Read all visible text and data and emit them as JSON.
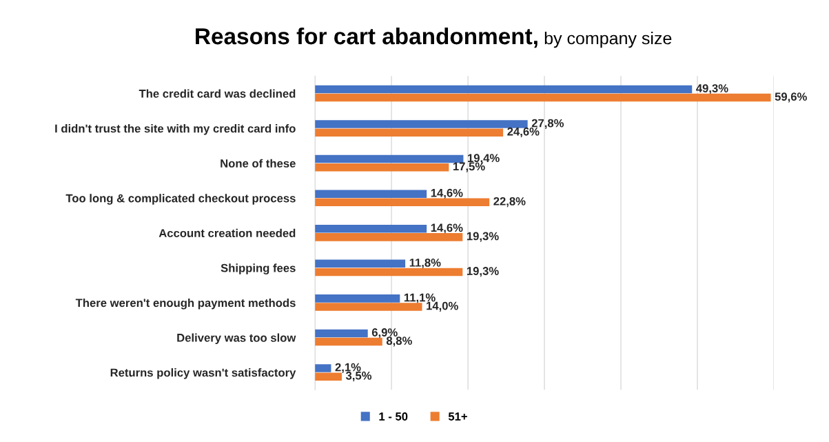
{
  "chart_data": {
    "type": "bar",
    "orientation": "horizontal",
    "title": "Reasons for cart abandonment,",
    "subtitle": "by company size",
    "categories": [
      "The credit card was declined",
      "I didn't trust the site with my credit card info",
      "None of these",
      "Too long & complicated checkout process",
      "Account creation needed",
      "Shipping fees",
      "There weren't enough payment methods",
      "Delivery was too slow",
      "Returns policy wasn't satisfactory"
    ],
    "series": [
      {
        "name": "1 - 50",
        "color": "#4472c4",
        "values": [
          49.3,
          27.8,
          19.4,
          14.6,
          14.6,
          11.8,
          11.1,
          6.9,
          2.1
        ],
        "value_labels": [
          "49,3%",
          "27,8%",
          "19,4%",
          "14,6%",
          "14,6%",
          "11,8%",
          "11,1%",
          "6,9%",
          "2,1%"
        ]
      },
      {
        "name": "51+",
        "color": "#ed7d31",
        "values": [
          59.6,
          24.6,
          17.5,
          22.8,
          19.3,
          19.3,
          14.0,
          8.8,
          3.5
        ],
        "value_labels": [
          "59,6%",
          "24,6%",
          "17,5%",
          "22,8%",
          "19,3%",
          "19,3%",
          "14,0%",
          "8,8%",
          "3,5%"
        ]
      }
    ],
    "xlim": [
      0,
      60
    ],
    "xticks": [
      {
        "value": 0,
        "label": null
      },
      {
        "value": 10,
        "label": null
      },
      {
        "value": 20,
        "label": null
      },
      {
        "value": 30,
        "label": null
      },
      {
        "value": 40,
        "label": null
      },
      {
        "value": 50,
        "label": null
      },
      {
        "value": 60,
        "label": null
      }
    ],
    "tick_labels": "y",
    "grid": "x",
    "legend": "bottom"
  }
}
